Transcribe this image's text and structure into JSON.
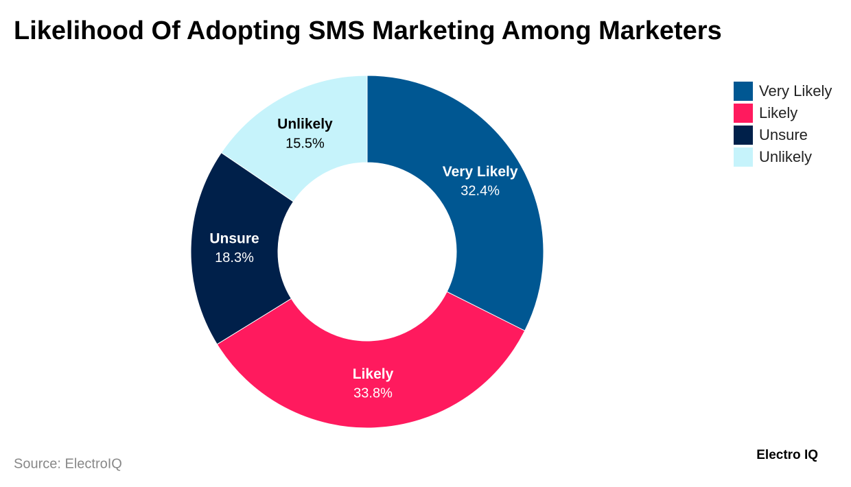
{
  "chart_data": {
    "type": "donut",
    "title": "Likelihood Of Adopting SMS Marketing Among Marketers",
    "categories": [
      "Very Likely",
      "Likely",
      "Unsure",
      "Unlikely"
    ],
    "series": [
      {
        "name": "Share",
        "values": [
          32.4,
          33.8,
          18.3,
          15.5
        ],
        "value_labels": [
          "32.4%",
          "33.8%",
          "18.3%",
          "15.5%"
        ]
      }
    ],
    "colors": [
      "#005792",
      "#ff1a5e",
      "#00204a",
      "#c6f3fb"
    ],
    "legend": "top-right",
    "source": "Source: ElectroIQ",
    "brand": "Electro IQ"
  }
}
